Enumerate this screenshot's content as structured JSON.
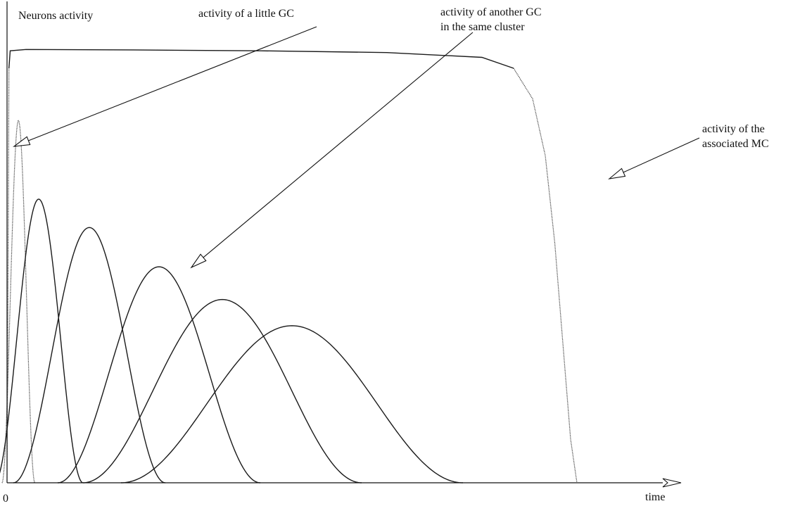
{
  "chart_data": {
    "type": "line",
    "title": "",
    "ylabel": "Neurons activity",
    "xlabel": "time",
    "x_tick_labels": [
      "0"
    ],
    "xlim": [
      0,
      100
    ],
    "ylim": [
      0,
      100
    ],
    "grid": false,
    "legend": "none",
    "series": [
      {
        "role": "mc",
        "style": "solid-top-dotted-edges",
        "points": [
          [
            0,
            0
          ],
          [
            0.2,
            60
          ],
          [
            0.3,
            95
          ],
          [
            0.5,
            99
          ],
          [
            3,
            99.3
          ],
          [
            20,
            99.2
          ],
          [
            40,
            99
          ],
          [
            60,
            98.6
          ],
          [
            75,
            97.5
          ],
          [
            80,
            95
          ],
          [
            83,
            88
          ],
          [
            85,
            75
          ],
          [
            86.5,
            55
          ],
          [
            88,
            28
          ],
          [
            89,
            10
          ],
          [
            90,
            0
          ]
        ]
      },
      {
        "role": "gc",
        "style": "dotted-pulse",
        "peak_x": 1.8,
        "width": 2.6,
        "peak": 83
      },
      {
        "role": "gc",
        "style": "solid-pulse",
        "peak_x": 5,
        "width": 7,
        "peak": 65
      },
      {
        "role": "gc",
        "style": "solid-pulse",
        "peak_x": 13,
        "width": 12,
        "peak": 58.5
      },
      {
        "role": "gc",
        "style": "solid-pulse",
        "peak_x": 24,
        "width": 16,
        "peak": 49.5
      },
      {
        "role": "gc",
        "style": "solid-pulse",
        "peak_x": 34,
        "width": 22,
        "peak": 42
      },
      {
        "role": "gc",
        "style": "solid-pulse",
        "peak_x": 45,
        "width": 27,
        "peak": 36
      }
    ],
    "annotations": [
      {
        "lines": [
          "activity of a little GC"
        ],
        "series_index": 1,
        "anchor": "right"
      },
      {
        "lines": [
          "activity of another GC",
          "in the same cluster"
        ],
        "series_index": 4,
        "anchor": "right"
      },
      {
        "lines": [
          "activity of the",
          "associated MC"
        ],
        "series_index": 0,
        "anchor": "left"
      }
    ]
  }
}
